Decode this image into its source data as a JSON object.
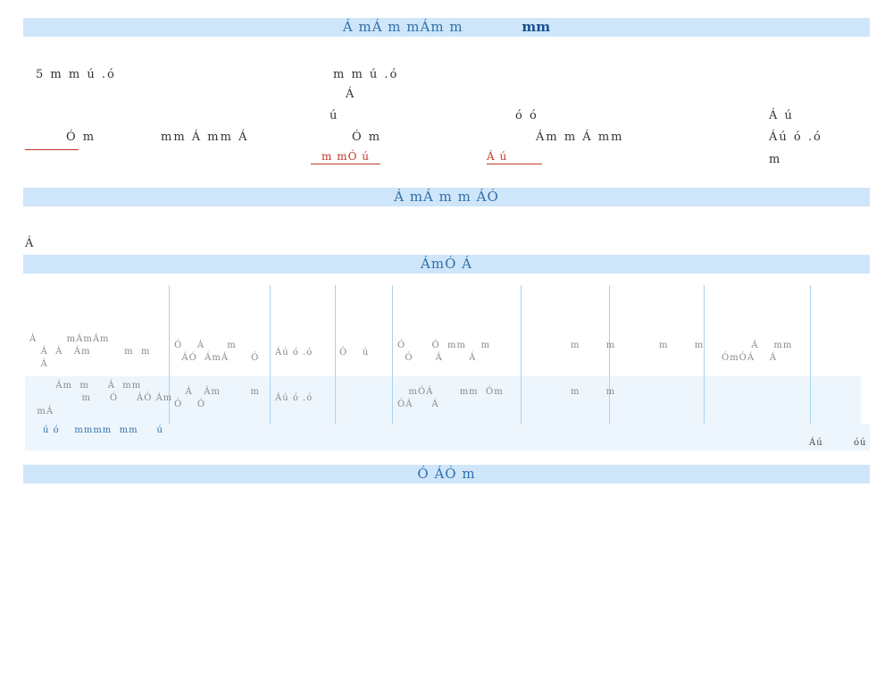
{
  "sections": {
    "s1": {
      "text": "Á mÁ m mÁm m",
      "accent": "mm"
    },
    "s2": "Á mÁ m m ÁÓ",
    "s3": "ÁmÓ Á",
    "s4": "Ó ÁÓ m"
  },
  "info": {
    "l1": "5 m m ú .ó",
    "l2": "m m ú .ó",
    "l3": "Á",
    "l4": "ú",
    "l5": "ó ó",
    "l6": "Á ú",
    "l7": "Ó m",
    "l8": "mm Á mm Á",
    "l9": "Ó m",
    "l10": "Ám m Á mm",
    "l11": "Áú ó .ó",
    "l12": "m"
  },
  "links": {
    "a": "",
    "b": "m mÓ ú",
    "c": "Á ú"
  },
  "note": "Á",
  "table": {
    "r1": {
      "c1a": "Á        mÁmÁm",
      "c1b": "   Á  Á   Ám         m  m",
      "c1c": "   Á",
      "c2a": "Ó    Á      m",
      "c2b": "  ÁÓ  ÁmÁ      Ó",
      "c3": "Áú ó .ó",
      "c4": "Ó    ú",
      "c5a": "Ó       Ó  mm    m",
      "c5b": "  Ó      Á       Á",
      "c6": "m       m",
      "c7": "m       m",
      "c8a": "        Á    mm",
      "c8b": "ÓmÓÁ    Á"
    },
    "r2": {
      "c1a": "       Ám  m     Á  mm",
      "c1b": "              m     Ó     ÁÓ Ám",
      "c1c": "  mÁ",
      "c2a": "   Á   Ám        m",
      "c2b": "Ó    Ó",
      "c3": "Áú ó .ó",
      "c5a": "   mÓÁ       mm  Óm",
      "c5b": "ÓÁ     Á",
      "c6": "m       m"
    },
    "r3": {
      "left": "ú ó    mmmm  mm     ú",
      "right1": "Áú",
      "right2": "óú"
    }
  }
}
